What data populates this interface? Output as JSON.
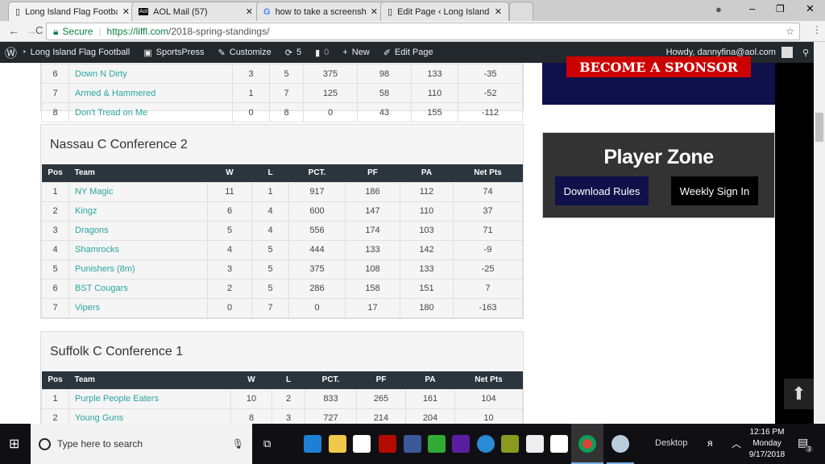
{
  "browser": {
    "tabs": [
      {
        "title": "Long Island Flag Football",
        "active": true
      },
      {
        "title": "AOL Mail (57)"
      },
      {
        "title": "how to take a screenshot"
      },
      {
        "title": "Edit Page ‹ Long Island Fl"
      }
    ],
    "secure_label": "Secure",
    "url_host": "https://liffl.com",
    "url_path": "/2018-spring-standings/"
  },
  "adminbar": {
    "site": "Long Island Flag Football",
    "sportspress": "SportsPress",
    "customize": "Customize",
    "updates": "5",
    "comments": "0",
    "new": "New",
    "edit": "Edit Page",
    "howdy": "Howdy, dannyfina@aol.com"
  },
  "table_headers": [
    "Pos",
    "Team",
    "W",
    "L",
    "PCT.",
    "PF",
    "PA",
    "Net Pts"
  ],
  "top_table": {
    "rows": [
      [
        "6",
        "Down N Dirty",
        "3",
        "5",
        "375",
        "98",
        "133",
        "-35"
      ],
      [
        "7",
        "Armed & Hammered",
        "1",
        "7",
        "125",
        "58",
        "110",
        "-52"
      ],
      [
        "8",
        "Don't Tread on Me",
        "0",
        "8",
        "0",
        "43",
        "155",
        "-112"
      ]
    ]
  },
  "nassau": {
    "title": "Nassau C Conference 2",
    "rows": [
      [
        "1",
        "NY Magic",
        "11",
        "1",
        "917",
        "186",
        "112",
        "74"
      ],
      [
        "2",
        "Kingz",
        "6",
        "4",
        "600",
        "147",
        "110",
        "37"
      ],
      [
        "3",
        "Dragons",
        "5",
        "4",
        "556",
        "174",
        "103",
        "71"
      ],
      [
        "4",
        "Shamrocks",
        "4",
        "5",
        "444",
        "133",
        "142",
        "-9"
      ],
      [
        "5",
        "Punishers (8m)",
        "3",
        "5",
        "375",
        "108",
        "133",
        "-25"
      ],
      [
        "6",
        "BST Cougars",
        "2",
        "5",
        "286",
        "158",
        "151",
        "7"
      ],
      [
        "7",
        "Vipers",
        "0",
        "7",
        "0",
        "17",
        "180",
        "-163"
      ]
    ]
  },
  "suffolk": {
    "title": "Suffolk C Conference 1",
    "rows": [
      [
        "1",
        "Purple People Eaters",
        "10",
        "2",
        "833",
        "265",
        "161",
        "104"
      ],
      [
        "2",
        "Young Guns",
        "8",
        "3",
        "727",
        "214",
        "204",
        "10"
      ]
    ]
  },
  "sidebar": {
    "sponsor": "BECOME A SPONSOR",
    "player_zone": "Player Zone",
    "download_rules": "Download Rules",
    "weekly_sign_in": "Weekly Sign In"
  },
  "taskbar": {
    "search_placeholder": "Type here to search",
    "desktop": "Desktop",
    "time": "12:16 PM",
    "day": "Monday",
    "date": "9/17/2018",
    "notifications": "3"
  },
  "colors": {
    "accent": "#2aa5a0",
    "header": "#2b353e",
    "navy": "#10104a",
    "red": "#cc0000"
  }
}
